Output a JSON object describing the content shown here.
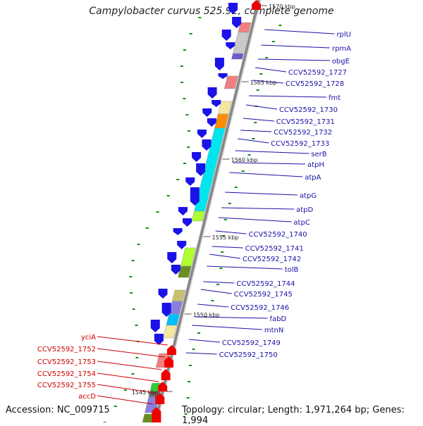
{
  "header": {
    "title": "Campylobacter curvus 525.92, complete genome"
  },
  "footer": {
    "accession": "Accession: NC_009715",
    "topology": "Topology: circular; Length: 1,971,264 bp; Genes: 1,994"
  },
  "ticks": [
    "1570 kbp",
    "1565 kbp",
    "1560 kbp",
    "1555 kbp",
    "1550 kbp",
    "1545 kbp"
  ],
  "labels_right": [
    "rplU",
    "rpmA",
    "obgE",
    "CCV52592_1727",
    "CCV52592_1728",
    "fmt",
    "CCV52592_1730",
    "CCV52592_1731",
    "CCV52592_1732",
    "CCV52592_1733",
    "serB",
    "atpH",
    "atpA",
    "atpG",
    "atpD",
    "atpC",
    "CCV52592_1740",
    "CCV52592_1741",
    "CCV52592_1742",
    "tolB",
    "CCV52592_1744",
    "CCV52592_1745",
    "CCV52592_1746",
    "fabD",
    "mtnN",
    "CCV52592_1749",
    "CCV52592_1750"
  ],
  "labels_left": [
    "yciA",
    "CCV52592_1752",
    "CCV52592_1753",
    "CCV52592_1754",
    "CCV52592_1755",
    "accD"
  ],
  "colors": {
    "reverse_strand": "#1a12e6",
    "forward_strand": "#ee0000",
    "label_right": "#1a12a8",
    "label_left": "#d00000",
    "backbone": "#888888",
    "gc_dots": "#1a8a1a"
  }
}
